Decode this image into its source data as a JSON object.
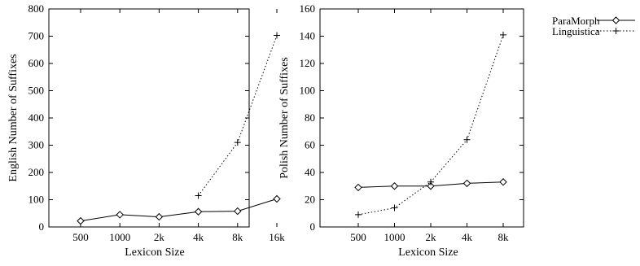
{
  "legend": {
    "placement": "top-right, outside plots",
    "entries": [
      {
        "label": "ParaMorph",
        "line": "solid",
        "marker": "diamond"
      },
      {
        "label": "Linguistica",
        "line": "dotted",
        "marker": "plus"
      }
    ]
  },
  "chart_data": [
    {
      "type": "line",
      "xlabel": "Lexicon Size",
      "ylabel": "English Number of Suffixes",
      "categories": [
        "500",
        "1000",
        "2k",
        "4k",
        "8k",
        "16k"
      ],
      "ylim": [
        0,
        800
      ],
      "yticks": [
        0,
        100,
        200,
        300,
        400,
        500,
        600,
        700,
        800
      ],
      "grid": false,
      "series": [
        {
          "name": "ParaMorph",
          "values": [
            22,
            45,
            37,
            56,
            58,
            103
          ]
        },
        {
          "name": "Linguistica",
          "values": [
            null,
            null,
            null,
            115,
            310,
            703
          ]
        }
      ]
    },
    {
      "type": "line",
      "xlabel": "Lexicon Size",
      "ylabel": "Polish Number of Suffixes",
      "categories": [
        "500",
        "1000",
        "2k",
        "4k",
        "8k"
      ],
      "ylim": [
        0,
        160
      ],
      "yticks": [
        0,
        20,
        40,
        60,
        80,
        100,
        120,
        140,
        160
      ],
      "grid": false,
      "series": [
        {
          "name": "ParaMorph",
          "values": [
            29,
            30,
            30,
            32,
            33
          ]
        },
        {
          "name": "Linguistica",
          "values": [
            9,
            14,
            33,
            64,
            141
          ]
        }
      ]
    }
  ]
}
